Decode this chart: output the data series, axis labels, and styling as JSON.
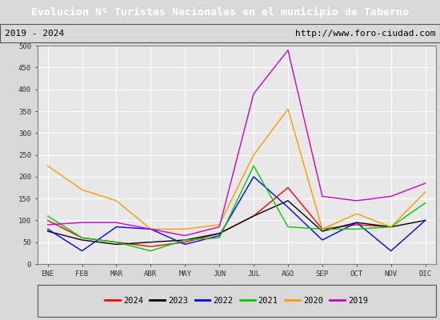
{
  "title": "Evolucion Nº Turistas Nacionales en el municipio de Taberno",
  "subtitle_left": "2019 - 2024",
  "subtitle_right": "http://www.foro-ciudad.com",
  "title_bg": "#4472c4",
  "title_color": "#ffffff",
  "months": [
    "ENE",
    "FEB",
    "MAR",
    "ABR",
    "MAY",
    "JUN",
    "JUL",
    "AGO",
    "SEP",
    "OCT",
    "NOV",
    "DIC"
  ],
  "ylim": [
    0,
    500
  ],
  "yticks": [
    0,
    50,
    100,
    150,
    200,
    250,
    300,
    350,
    400,
    450,
    500
  ],
  "series": {
    "2024": {
      "color": "#ff0000",
      "data": [
        100,
        60,
        50,
        40,
        50,
        70,
        110,
        175,
        80,
        90,
        85,
        null
      ]
    },
    "2023": {
      "color": "#000000",
      "data": [
        75,
        55,
        45,
        50,
        55,
        70,
        110,
        145,
        75,
        95,
        85,
        100
      ]
    },
    "2022": {
      "color": "#0000ff",
      "data": [
        80,
        30,
        85,
        80,
        45,
        65,
        200,
        130,
        55,
        95,
        30,
        100
      ]
    },
    "2021": {
      "color": "#00cc00",
      "data": [
        110,
        60,
        50,
        30,
        55,
        60,
        225,
        85,
        80,
        80,
        85,
        140
      ]
    },
    "2020": {
      "color": "#ff9900",
      "data": [
        225,
        170,
        145,
        80,
        80,
        90,
        250,
        355,
        80,
        115,
        85,
        165
      ]
    },
    "2019": {
      "color": "#cc00cc",
      "data": [
        90,
        95,
        95,
        80,
        65,
        85,
        390,
        490,
        155,
        145,
        155,
        185
      ]
    }
  },
  "legend_order": [
    "2024",
    "2023",
    "2022",
    "2021",
    "2020",
    "2019"
  ],
  "bg_color": "#d9d9d9",
  "plot_bg": "#e8e8e8",
  "grid_color": "#ffffff",
  "border_color": "#808080"
}
